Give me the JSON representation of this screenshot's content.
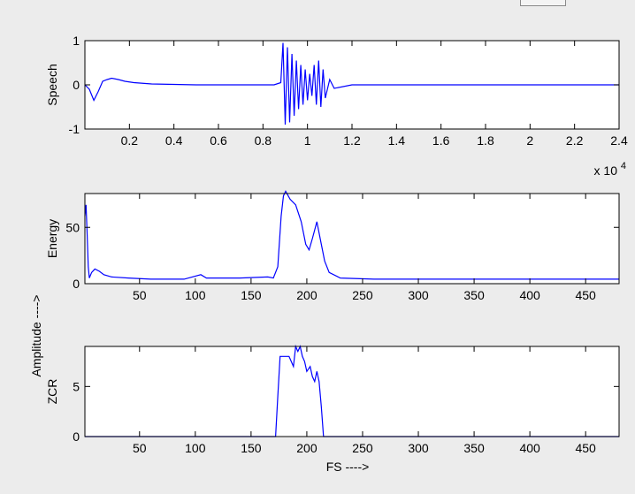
{
  "figure": {
    "background": "#ececec",
    "axes_background": "#ffffff",
    "line_color": "#0000ff",
    "shared_ylabel": "Amplitude ---->"
  },
  "chart_data": [
    {
      "type": "line",
      "title": "",
      "xlabel": "",
      "ylabel": "Speech",
      "xlim": [
        0,
        24000
      ],
      "ylim": [
        -1,
        1
      ],
      "xticks": [
        2000,
        4000,
        6000,
        8000,
        10000,
        12000,
        14000,
        16000,
        18000,
        20000,
        22000,
        24000
      ],
      "xtick_labels": [
        "0.2",
        "0.4",
        "0.6",
        "0.8",
        "1",
        "1.2",
        "1.4",
        "1.6",
        "1.8",
        "2",
        "2.2",
        "2.4"
      ],
      "yticks": [
        -1,
        0,
        1
      ],
      "ytick_labels": [
        "-1",
        "0",
        "1"
      ],
      "x_exponent": {
        "base": "x 10",
        "power": "4"
      },
      "grid": false,
      "series": [
        {
          "values": [
            [
              0,
              0
            ],
            [
              200,
              -0.1
            ],
            [
              400,
              -0.35
            ],
            [
              600,
              -0.15
            ],
            [
              800,
              0.08
            ],
            [
              1000,
              0.12
            ],
            [
              1200,
              0.15
            ],
            [
              1500,
              0.12
            ],
            [
              1800,
              0.08
            ],
            [
              2200,
              0.05
            ],
            [
              3000,
              0.02
            ],
            [
              5000,
              0
            ],
            [
              7000,
              0
            ],
            [
              8500,
              0
            ],
            [
              8800,
              0.05
            ],
            [
              8900,
              0.95
            ],
            [
              9000,
              -0.9
            ],
            [
              9100,
              0.85
            ],
            [
              9200,
              -0.85
            ],
            [
              9300,
              0.7
            ],
            [
              9400,
              -0.7
            ],
            [
              9500,
              0.55
            ],
            [
              9600,
              -0.55
            ],
            [
              9700,
              0.45
            ],
            [
              9800,
              -0.45
            ],
            [
              9900,
              0.35
            ],
            [
              10000,
              -0.35
            ],
            [
              10100,
              0.25
            ],
            [
              10200,
              -0.25
            ],
            [
              10300,
              0.45
            ],
            [
              10400,
              -0.45
            ],
            [
              10500,
              0.55
            ],
            [
              10600,
              -0.5
            ],
            [
              10700,
              0.35
            ],
            [
              10800,
              -0.3
            ],
            [
              11000,
              0.12
            ],
            [
              11200,
              -0.08
            ],
            [
              12000,
              0
            ],
            [
              24000,
              0
            ]
          ]
        }
      ]
    },
    {
      "type": "line",
      "title": "",
      "xlabel": "",
      "ylabel": "Energy",
      "xlim": [
        1,
        480
      ],
      "ylim": [
        0,
        80
      ],
      "xticks": [
        50,
        100,
        150,
        200,
        250,
        300,
        350,
        400,
        450
      ],
      "xtick_labels": [
        "50",
        "100",
        "150",
        "200",
        "250",
        "300",
        "350",
        "400",
        "450"
      ],
      "yticks": [
        0,
        50
      ],
      "ytick_labels": [
        "0",
        "50"
      ],
      "grid": false,
      "series": [
        {
          "values": [
            [
              1,
              60
            ],
            [
              2,
              70
            ],
            [
              3,
              45
            ],
            [
              4,
              15
            ],
            [
              5,
              5
            ],
            [
              7,
              10
            ],
            [
              10,
              13
            ],
            [
              14,
              11
            ],
            [
              18,
              8
            ],
            [
              25,
              6
            ],
            [
              40,
              5
            ],
            [
              60,
              4
            ],
            [
              90,
              4
            ],
            [
              105,
              8
            ],
            [
              110,
              5
            ],
            [
              140,
              5
            ],
            [
              165,
              6
            ],
            [
              170,
              5
            ],
            [
              174,
              15
            ],
            [
              177,
              60
            ],
            [
              179,
              78
            ],
            [
              181,
              82
            ],
            [
              185,
              75
            ],
            [
              190,
              70
            ],
            [
              195,
              55
            ],
            [
              199,
              35
            ],
            [
              202,
              30
            ],
            [
              205,
              40
            ],
            [
              209,
              55
            ],
            [
              213,
              35
            ],
            [
              216,
              20
            ],
            [
              220,
              10
            ],
            [
              230,
              5
            ],
            [
              260,
              4
            ],
            [
              480,
              4
            ]
          ]
        }
      ]
    },
    {
      "type": "line",
      "title": "",
      "xlabel": "FS ---->",
      "ylabel": "ZCR",
      "xlim": [
        1,
        480
      ],
      "ylim": [
        0,
        9
      ],
      "xticks": [
        50,
        100,
        150,
        200,
        250,
        300,
        350,
        400,
        450
      ],
      "xtick_labels": [
        "50",
        "100",
        "150",
        "200",
        "250",
        "300",
        "350",
        "400",
        "450"
      ],
      "yticks": [
        0,
        5
      ],
      "ytick_labels": [
        "0",
        "5"
      ],
      "grid": false,
      "series": [
        {
          "values": [
            [
              1,
              0
            ],
            [
              172,
              0
            ],
            [
              174,
              4
            ],
            [
              176,
              8
            ],
            [
              180,
              8
            ],
            [
              184,
              8
            ],
            [
              186,
              7.5
            ],
            [
              188,
              7
            ],
            [
              190,
              9
            ],
            [
              192,
              8.5
            ],
            [
              194,
              9
            ],
            [
              196,
              8
            ],
            [
              198,
              7.5
            ],
            [
              200,
              6.5
            ],
            [
              203,
              7
            ],
            [
              205,
              6
            ],
            [
              207,
              5.5
            ],
            [
              209,
              6.5
            ],
            [
              211,
              5.5
            ],
            [
              213,
              3
            ],
            [
              215,
              0
            ],
            [
              480,
              0
            ]
          ]
        }
      ]
    }
  ]
}
